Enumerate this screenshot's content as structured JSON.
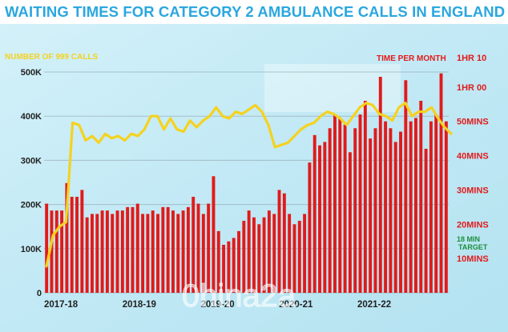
{
  "title": "WAITING TIMES FOR CATEGORY 2 AMBULANCE CALLS IN ENGLAND",
  "watermark": "0hina2a",
  "colors": {
    "calls_line": "#f5d21f",
    "time_bars": "#e21a1a",
    "target": "#1e8e3e",
    "title": "#2aa7df",
    "background_tint": "#c7ecf6"
  },
  "chart_data": {
    "type": "bar+line",
    "left_axis": {
      "label": "NUMBER OF 999 CALLS",
      "range": [
        0,
        500000
      ],
      "ticks": [
        0,
        100000,
        200000,
        300000,
        400000,
        500000
      ],
      "tick_labels": [
        "0",
        "100K",
        "200K",
        "300K",
        "400K",
        "500K"
      ]
    },
    "right_axis": {
      "label": "TIME PER MONTH",
      "unit": "minutes",
      "range": [
        0,
        70
      ],
      "ticks": [
        10,
        20,
        30,
        40,
        50,
        60,
        70
      ],
      "tick_labels": [
        "10MINS",
        "20MINS",
        "30MINS",
        "40MINS",
        "50MINS",
        "1HR 00",
        "1HR 10"
      ]
    },
    "x_tick_labels": [
      {
        "label": "2017-18",
        "month_index": 0
      },
      {
        "label": "2018-19",
        "month_index": 12
      },
      {
        "label": "2019-20",
        "month_index": 24
      },
      {
        "label": "2020-21",
        "month_index": 36
      },
      {
        "label": "2021-22",
        "month_index": 48
      }
    ],
    "target": {
      "value": 18,
      "label_line1": "18 MIN",
      "label_line2": "TARGET"
    },
    "grid": true,
    "series": [
      {
        "name": "Number of 999 calls",
        "type": "line",
        "axis": "left",
        "values": [
          60000,
          130000,
          150000,
          160000,
          385000,
          380000,
          345000,
          355000,
          340000,
          360000,
          350000,
          355000,
          345000,
          360000,
          355000,
          370000,
          400000,
          400000,
          370000,
          395000,
          370000,
          365000,
          390000,
          375000,
          390000,
          400000,
          420000,
          400000,
          395000,
          410000,
          405000,
          415000,
          425000,
          410000,
          380000,
          330000,
          335000,
          340000,
          355000,
          370000,
          380000,
          385000,
          400000,
          410000,
          405000,
          395000,
          380000,
          400000,
          420000,
          430000,
          425000,
          405000,
          400000,
          390000,
          420000,
          430000,
          400000,
          410000,
          410000,
          420000,
          395000,
          375000,
          360000
        ]
      },
      {
        "name": "Time per month",
        "type": "bar",
        "axis": "right",
        "values": [
          26,
          24,
          24,
          24,
          32,
          28,
          28,
          30,
          22,
          23,
          23,
          24,
          24,
          23,
          24,
          24,
          25,
          25,
          26,
          23,
          23,
          24,
          23,
          25,
          25,
          24,
          23,
          24,
          25,
          28,
          26,
          23,
          26,
          34,
          18,
          14,
          15,
          16,
          18,
          21,
          24,
          22,
          20,
          22,
          24,
          23,
          30,
          29,
          23,
          20,
          21,
          23,
          38,
          46,
          43,
          44,
          48,
          52,
          51,
          49,
          41,
          48,
          52,
          56,
          45,
          48,
          63,
          50,
          48,
          44,
          47,
          62,
          50,
          51,
          56,
          42,
          50,
          52,
          64,
          50
        ]
      }
    ]
  }
}
